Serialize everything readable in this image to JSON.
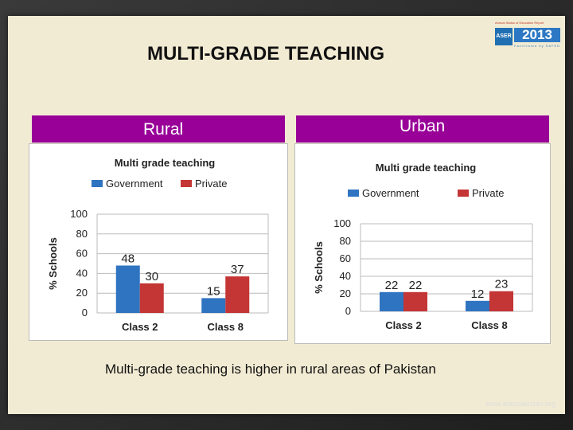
{
  "slide": {
    "title": "MULTI-GRADE TEACHING",
    "rural_header": "Rural",
    "urban_header": "Urban",
    "caption": "Multi-grade teaching is higher in rural areas of Pakistan",
    "footer": "www.aserpakistan.org",
    "logo": {
      "top_text": "Annual Status of Education Report",
      "aser": "ASER",
      "year": "2013",
      "sub_text": "Facilitated by SAFED"
    },
    "colors": {
      "header": "#980098",
      "government": "#2f74c0",
      "private": "#c43535",
      "background": "#f2ebd3"
    }
  },
  "chart_data": [
    {
      "type": "bar",
      "title": "Multi grade teaching",
      "ylabel": "% Schools",
      "categories": [
        "Class 2",
        "Class 8"
      ],
      "series": [
        {
          "name": "Government",
          "values": [
            48,
            15
          ]
        },
        {
          "name": "Private",
          "values": [
            30,
            37
          ]
        }
      ],
      "ylim": [
        0,
        100
      ],
      "yticks": [
        0,
        20,
        40,
        60,
        80,
        100
      ],
      "grid": true,
      "legend": "top"
    },
    {
      "type": "bar",
      "title": "Multi grade teaching",
      "ylabel": "% Schools",
      "categories": [
        "Class 2",
        "Class 8"
      ],
      "series": [
        {
          "name": "Government",
          "values": [
            22,
            12
          ]
        },
        {
          "name": "Private",
          "values": [
            22,
            23
          ]
        }
      ],
      "ylim": [
        0,
        100
      ],
      "yticks": [
        0,
        20,
        40,
        60,
        80,
        100
      ],
      "grid": true,
      "legend": "top"
    }
  ]
}
